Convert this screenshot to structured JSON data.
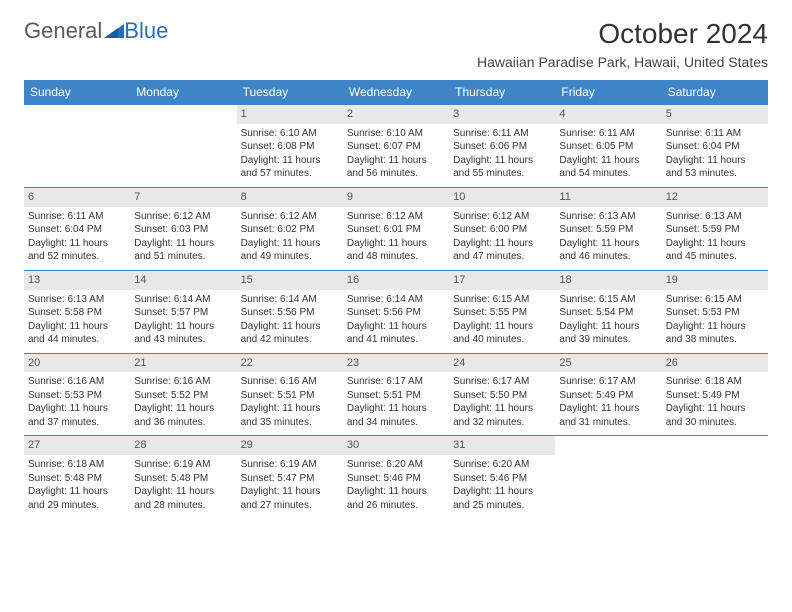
{
  "logo": {
    "text1": "General",
    "text2": "Blue",
    "color_gray": "#5a5a5a",
    "color_blue": "#2a6fb5"
  },
  "title": "October 2024",
  "location": "Hawaiian Paradise Park, Hawaii, United States",
  "header_bg": "#3d85c6",
  "daynum_bg": "#e8e8e8",
  "border_color": "#3d85c6",
  "weekdays": [
    "Sunday",
    "Monday",
    "Tuesday",
    "Wednesday",
    "Thursday",
    "Friday",
    "Saturday"
  ],
  "weeks": [
    [
      null,
      null,
      {
        "n": "1",
        "sr": "Sunrise: 6:10 AM",
        "ss": "Sunset: 6:08 PM",
        "dl": "Daylight: 11 hours and 57 minutes."
      },
      {
        "n": "2",
        "sr": "Sunrise: 6:10 AM",
        "ss": "Sunset: 6:07 PM",
        "dl": "Daylight: 11 hours and 56 minutes."
      },
      {
        "n": "3",
        "sr": "Sunrise: 6:11 AM",
        "ss": "Sunset: 6:06 PM",
        "dl": "Daylight: 11 hours and 55 minutes."
      },
      {
        "n": "4",
        "sr": "Sunrise: 6:11 AM",
        "ss": "Sunset: 6:05 PM",
        "dl": "Daylight: 11 hours and 54 minutes."
      },
      {
        "n": "5",
        "sr": "Sunrise: 6:11 AM",
        "ss": "Sunset: 6:04 PM",
        "dl": "Daylight: 11 hours and 53 minutes."
      }
    ],
    [
      {
        "n": "6",
        "sr": "Sunrise: 6:11 AM",
        "ss": "Sunset: 6:04 PM",
        "dl": "Daylight: 11 hours and 52 minutes."
      },
      {
        "n": "7",
        "sr": "Sunrise: 6:12 AM",
        "ss": "Sunset: 6:03 PM",
        "dl": "Daylight: 11 hours and 51 minutes."
      },
      {
        "n": "8",
        "sr": "Sunrise: 6:12 AM",
        "ss": "Sunset: 6:02 PM",
        "dl": "Daylight: 11 hours and 49 minutes."
      },
      {
        "n": "9",
        "sr": "Sunrise: 6:12 AM",
        "ss": "Sunset: 6:01 PM",
        "dl": "Daylight: 11 hours and 48 minutes."
      },
      {
        "n": "10",
        "sr": "Sunrise: 6:12 AM",
        "ss": "Sunset: 6:00 PM",
        "dl": "Daylight: 11 hours and 47 minutes."
      },
      {
        "n": "11",
        "sr": "Sunrise: 6:13 AM",
        "ss": "Sunset: 5:59 PM",
        "dl": "Daylight: 11 hours and 46 minutes."
      },
      {
        "n": "12",
        "sr": "Sunrise: 6:13 AM",
        "ss": "Sunset: 5:59 PM",
        "dl": "Daylight: 11 hours and 45 minutes."
      }
    ],
    [
      {
        "n": "13",
        "sr": "Sunrise: 6:13 AM",
        "ss": "Sunset: 5:58 PM",
        "dl": "Daylight: 11 hours and 44 minutes."
      },
      {
        "n": "14",
        "sr": "Sunrise: 6:14 AM",
        "ss": "Sunset: 5:57 PM",
        "dl": "Daylight: 11 hours and 43 minutes."
      },
      {
        "n": "15",
        "sr": "Sunrise: 6:14 AM",
        "ss": "Sunset: 5:56 PM",
        "dl": "Daylight: 11 hours and 42 minutes."
      },
      {
        "n": "16",
        "sr": "Sunrise: 6:14 AM",
        "ss": "Sunset: 5:56 PM",
        "dl": "Daylight: 11 hours and 41 minutes."
      },
      {
        "n": "17",
        "sr": "Sunrise: 6:15 AM",
        "ss": "Sunset: 5:55 PM",
        "dl": "Daylight: 11 hours and 40 minutes."
      },
      {
        "n": "18",
        "sr": "Sunrise: 6:15 AM",
        "ss": "Sunset: 5:54 PM",
        "dl": "Daylight: 11 hours and 39 minutes."
      },
      {
        "n": "19",
        "sr": "Sunrise: 6:15 AM",
        "ss": "Sunset: 5:53 PM",
        "dl": "Daylight: 11 hours and 38 minutes."
      }
    ],
    [
      {
        "n": "20",
        "sr": "Sunrise: 6:16 AM",
        "ss": "Sunset: 5:53 PM",
        "dl": "Daylight: 11 hours and 37 minutes."
      },
      {
        "n": "21",
        "sr": "Sunrise: 6:16 AM",
        "ss": "Sunset: 5:52 PM",
        "dl": "Daylight: 11 hours and 36 minutes."
      },
      {
        "n": "22",
        "sr": "Sunrise: 6:16 AM",
        "ss": "Sunset: 5:51 PM",
        "dl": "Daylight: 11 hours and 35 minutes."
      },
      {
        "n": "23",
        "sr": "Sunrise: 6:17 AM",
        "ss": "Sunset: 5:51 PM",
        "dl": "Daylight: 11 hours and 34 minutes."
      },
      {
        "n": "24",
        "sr": "Sunrise: 6:17 AM",
        "ss": "Sunset: 5:50 PM",
        "dl": "Daylight: 11 hours and 32 minutes."
      },
      {
        "n": "25",
        "sr": "Sunrise: 6:17 AM",
        "ss": "Sunset: 5:49 PM",
        "dl": "Daylight: 11 hours and 31 minutes."
      },
      {
        "n": "26",
        "sr": "Sunrise: 6:18 AM",
        "ss": "Sunset: 5:49 PM",
        "dl": "Daylight: 11 hours and 30 minutes."
      }
    ],
    [
      {
        "n": "27",
        "sr": "Sunrise: 6:18 AM",
        "ss": "Sunset: 5:48 PM",
        "dl": "Daylight: 11 hours and 29 minutes."
      },
      {
        "n": "28",
        "sr": "Sunrise: 6:19 AM",
        "ss": "Sunset: 5:48 PM",
        "dl": "Daylight: 11 hours and 28 minutes."
      },
      {
        "n": "29",
        "sr": "Sunrise: 6:19 AM",
        "ss": "Sunset: 5:47 PM",
        "dl": "Daylight: 11 hours and 27 minutes."
      },
      {
        "n": "30",
        "sr": "Sunrise: 6:20 AM",
        "ss": "Sunset: 5:46 PM",
        "dl": "Daylight: 11 hours and 26 minutes."
      },
      {
        "n": "31",
        "sr": "Sunrise: 6:20 AM",
        "ss": "Sunset: 5:46 PM",
        "dl": "Daylight: 11 hours and 25 minutes."
      },
      null,
      null
    ]
  ]
}
